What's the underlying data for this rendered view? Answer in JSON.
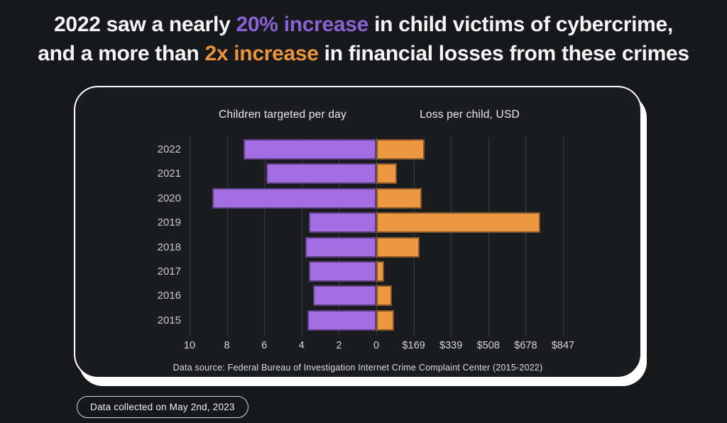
{
  "title": {
    "line1_pre": "2022 saw a nearly ",
    "line1_highlight": "20% increase",
    "line1_post": " in child victims of cybercrime,",
    "line2_pre": "and a more than ",
    "line2_highlight": "2x increase",
    "line2_post": " in financial losses from these crimes",
    "highlight1_color": "#8b62d4",
    "highlight2_color": "#e9933c"
  },
  "card": {
    "left_header": "Children targeted per day",
    "right_header": "Loss per child, USD",
    "source_note": "Data source: Federal Bureau of Investigation Internet Crime Complaint Center (2015-2022)"
  },
  "footer_badge": {
    "label": "Data collected on May 2nd, 2023"
  },
  "chart_data": {
    "type": "bar",
    "orientation": "horizontal-diverging",
    "title": "Child cybercrime victims and losses by year",
    "categories": [
      "2022",
      "2021",
      "2020",
      "2019",
      "2018",
      "2017",
      "2016",
      "2015"
    ],
    "series": [
      {
        "name": "Children targeted per day",
        "side": "left",
        "color": "#a36ee2",
        "axis_max": 10,
        "tick_labels": [
          "10",
          "8",
          "6",
          "4",
          "2",
          "0"
        ],
        "values": [
          7.1,
          5.9,
          8.8,
          3.6,
          3.8,
          3.6,
          3.4,
          3.7
        ]
      },
      {
        "name": "Loss per child, USD",
        "side": "right",
        "color": "#eb9841",
        "axis_max": 847,
        "tick_labels": [
          "$169",
          "$339",
          "$508",
          "$678",
          "$847"
        ],
        "values": [
          220,
          95,
          205,
          745,
          195,
          35,
          70,
          80
        ]
      }
    ],
    "grid": true,
    "gridline_color": "#3a3b3f",
    "background": "#1b1c1f"
  }
}
